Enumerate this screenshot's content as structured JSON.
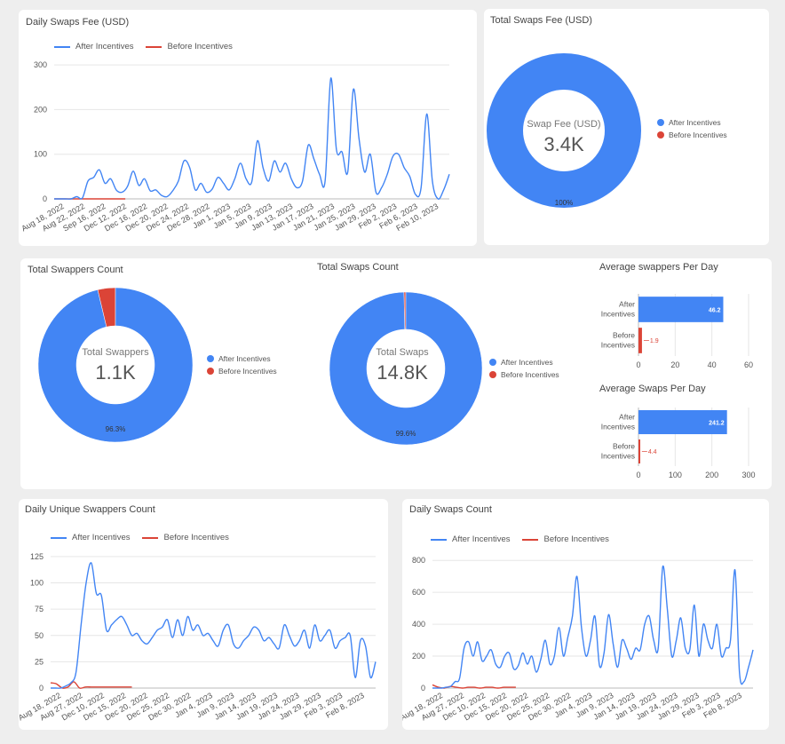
{
  "colors": {
    "after": "#4285f4",
    "before": "#db4437",
    "grid": "#e6e6e6",
    "axis": "#999999"
  },
  "daily_fee": {
    "title": "Daily Swaps Fee (USD)",
    "legend": [
      "After Incentives",
      "Before Incentives"
    ]
  },
  "total_fee": {
    "title": "Total Swaps Fee (USD)",
    "center_caption": "Swap Fee (USD)",
    "center_value": "3.4K",
    "pct_label": "100%",
    "legend": [
      "After Incentives",
      "Before Incentives"
    ]
  },
  "swappers_count": {
    "title": "Total Swappers Count",
    "center_caption": "Total Swappers",
    "center_value": "1.1K",
    "pct_label": "96.3%",
    "legend": [
      "After Incentives",
      "Before Incentives"
    ]
  },
  "swaps_count": {
    "title": "Total Swaps Count",
    "center_caption": "Total Swaps",
    "center_value": "14.8K",
    "pct_label": "99.6%",
    "legend": [
      "After Incentives",
      "Before Incentives"
    ]
  },
  "avg_swappers": {
    "title": "Average swappers Per Day"
  },
  "avg_swaps": {
    "title": "Average Swaps Per Day"
  },
  "daily_unique": {
    "title": "Daily Unique Swappers Count",
    "legend": [
      "After Incentives",
      "Before Incentives"
    ]
  },
  "daily_swaps": {
    "title": "Daily Swaps Count",
    "legend": [
      "After Incentives",
      "Before Incentives"
    ]
  },
  "chart_data": [
    {
      "id": "daily_fee",
      "type": "line",
      "title": "Daily Swaps Fee (USD)",
      "xlabels": [
        "Aug 18, 2022",
        "Aug 22, 2022",
        "Sep 16, 2022",
        "Dec 12, 2022",
        "Dec 16, 2022",
        "Dec 20, 2022",
        "Dec 24, 2022",
        "Dec 28, 2022",
        "Jan 1, 2023",
        "Jan 5, 2023",
        "Jan 9, 2023",
        "Jan 13, 2023",
        "Jan 17, 2023",
        "Jan 21, 2023",
        "Jan 25, 2023",
        "Jan 29, 2023",
        "Feb 2, 2023",
        "Feb 6, 2023",
        "Feb 10, 2023"
      ],
      "yticks": [
        0,
        100,
        200,
        300
      ],
      "ylim": [
        0,
        320
      ],
      "series": [
        {
          "name": "Before Incentives",
          "values": [
            0,
            0,
            0,
            0,
            0,
            0,
            0,
            0,
            0,
            0,
            0,
            0,
            0,
            0,
            0,
            0,
            0,
            0
          ]
        },
        {
          "name": "After Incentives",
          "values": [
            0,
            0,
            0,
            0,
            5,
            2,
            40,
            48,
            65,
            35,
            45,
            20,
            15,
            28,
            62,
            30,
            45,
            18,
            20,
            8,
            5,
            18,
            40,
            85,
            70,
            20,
            35,
            15,
            22,
            48,
            35,
            20,
            45,
            80,
            45,
            38,
            130,
            70,
            40,
            85,
            60,
            80,
            45,
            25,
            40,
            120,
            90,
            55,
            40,
            270,
            110,
            105,
            60,
            245,
            135,
            60,
            100,
            15,
            25,
            55,
            95,
            100,
            70,
            50,
            10,
            25,
            190,
            40,
            0,
            20,
            55
          ]
        }
      ]
    },
    {
      "id": "total_fee",
      "type": "pie",
      "title": "Total Swaps Fee (USD)",
      "labels": [
        "After Incentives",
        "Before Incentives"
      ],
      "values": [
        100,
        0
      ]
    },
    {
      "id": "swappers_count",
      "type": "pie",
      "title": "Total Swappers Count",
      "labels": [
        "After Incentives",
        "Before Incentives"
      ],
      "values": [
        96.3,
        3.7
      ]
    },
    {
      "id": "swaps_count",
      "type": "pie",
      "title": "Total Swaps Count",
      "labels": [
        "After Incentives",
        "Before Incentives"
      ],
      "values": [
        99.6,
        0.4
      ]
    },
    {
      "id": "avg_swappers",
      "type": "bar",
      "title": "Average swappers Per Day",
      "categories": [
        "After Incentives",
        "Before Incentives"
      ],
      "values": [
        46.2,
        1.9
      ],
      "value_labels": [
        "46.2",
        "1.9"
      ],
      "xticks": [
        0,
        20,
        40,
        60
      ],
      "xlim": [
        0,
        60
      ]
    },
    {
      "id": "avg_swaps",
      "type": "bar",
      "title": "Average Swaps Per Day",
      "categories": [
        "After Incentives",
        "Before Incentives"
      ],
      "values": [
        241.2,
        4.4
      ],
      "value_labels": [
        "241.2",
        "4.4"
      ],
      "xticks": [
        0,
        100,
        200,
        300
      ],
      "xlim": [
        0,
        300
      ]
    },
    {
      "id": "daily_unique",
      "type": "line",
      "title": "Daily Unique Swappers Count",
      "xlabels": [
        "Aug 18, 2022",
        "Aug 27, 2022",
        "Dec 10, 2022",
        "Dec 15, 2022",
        "Dec 20, 2022",
        "Dec 25, 2022",
        "Dec 30, 2022",
        "Jan 4, 2023",
        "Jan 9, 2023",
        "Jan 14, 2023",
        "Jan 19, 2023",
        "Jan 24, 2023",
        "Jan 29, 2023",
        "Feb 3, 2023",
        "Feb 8, 2023"
      ],
      "yticks": [
        0,
        25,
        50,
        75,
        100,
        125
      ],
      "ylim": [
        0,
        130
      ],
      "series": [
        {
          "name": "Before Incentives",
          "values": [
            5,
            4,
            0,
            1,
            6,
            0,
            1,
            1,
            1,
            1,
            1,
            1,
            1,
            1,
            1
          ]
        },
        {
          "name": "After Incentives",
          "values": [
            0,
            0,
            0,
            2,
            5,
            15,
            60,
            100,
            119,
            90,
            88,
            55,
            60,
            65,
            68,
            60,
            50,
            52,
            45,
            42,
            48,
            55,
            58,
            65,
            48,
            65,
            50,
            68,
            55,
            60,
            50,
            52,
            45,
            40,
            55,
            60,
            42,
            38,
            45,
            50,
            58,
            55,
            45,
            48,
            42,
            38,
            60,
            50,
            40,
            45,
            55,
            38,
            60,
            45,
            50,
            55,
            38,
            45,
            48,
            50,
            10,
            45,
            40,
            10,
            25
          ]
        }
      ]
    },
    {
      "id": "daily_swaps",
      "type": "line",
      "title": "Daily Swaps Count",
      "xlabels": [
        "Aug 18, 2022",
        "Aug 27, 2022",
        "Dec 10, 2022",
        "Dec 15, 2022",
        "Dec 20, 2022",
        "Dec 25, 2022",
        "Dec 30, 2022",
        "Jan 4, 2023",
        "Jan 9, 2023",
        "Jan 14, 2023",
        "Jan 19, 2023",
        "Jan 24, 2023",
        "Jan 29, 2023",
        "Feb 3, 2023",
        "Feb 8, 2023"
      ],
      "yticks": [
        0,
        200,
        400,
        600,
        800
      ],
      "ylim": [
        0,
        840
      ],
      "series": [
        {
          "name": "Before Incentives",
          "values": [
            20,
            5,
            0,
            10,
            5,
            0,
            5,
            5,
            0,
            5,
            5,
            0,
            5,
            5,
            5
          ]
        },
        {
          "name": "After Incentives",
          "values": [
            0,
            0,
            0,
            5,
            10,
            40,
            60,
            250,
            290,
            200,
            290,
            170,
            200,
            240,
            150,
            130,
            200,
            220,
            120,
            140,
            220,
            150,
            200,
            100,
            180,
            300,
            150,
            200,
            380,
            200,
            320,
            450,
            700,
            380,
            200,
            300,
            450,
            140,
            220,
            460,
            280,
            130,
            300,
            250,
            180,
            250,
            240,
            400,
            450,
            300,
            250,
            760,
            500,
            200,
            300,
            440,
            250,
            240,
            520,
            200,
            400,
            300,
            250,
            400,
            200,
            250,
            300,
            740,
            100,
            40,
            130,
            240
          ]
        }
      ]
    }
  ]
}
